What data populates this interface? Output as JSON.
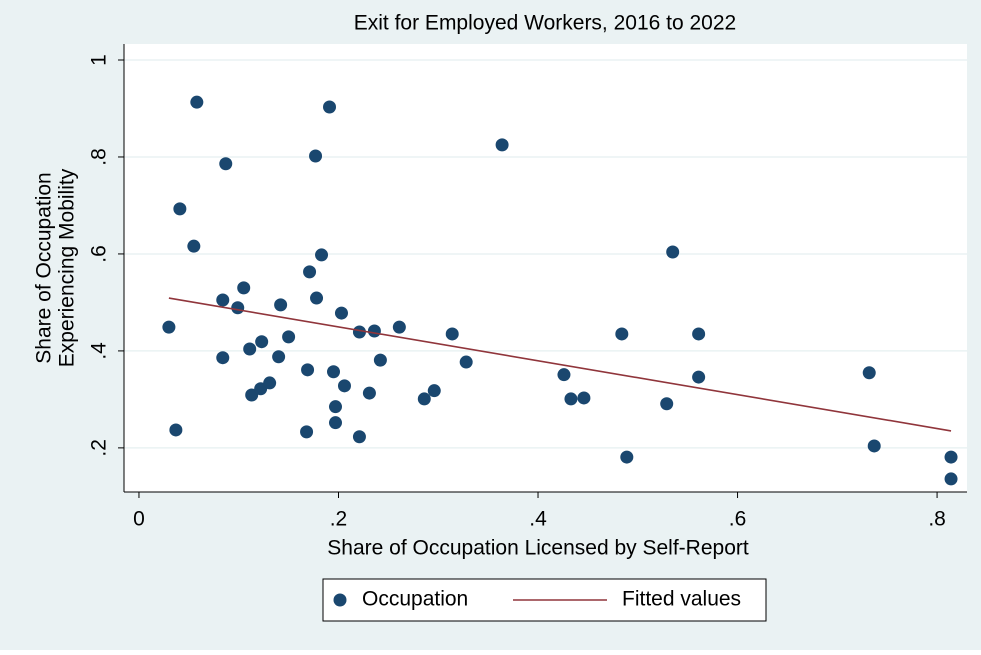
{
  "chart_data": {
    "type": "scatter",
    "title": "Exit for Employed Workers, 2016 to 2022",
    "xlabel": "Share of Occupation Licensed by Self-Report",
    "ylabel": [
      "Share of Occupation",
      "Experiencing Mobility"
    ],
    "xlim": [
      -0.015,
      0.83
    ],
    "ylim": [
      0.109,
      1.033
    ],
    "xticks": [
      0,
      {
        "value": 0.2,
        "label": ".2"
      },
      {
        "value": 0.4,
        "label": ".4"
      },
      {
        "value": 0.6,
        "label": ".6"
      },
      {
        "value": 0.8,
        "label": ".8"
      }
    ],
    "yticks": [
      {
        "value": 0.2,
        "label": ".2"
      },
      {
        "value": 0.4,
        "label": ".4"
      },
      {
        "value": 0.6,
        "label": ".6"
      },
      {
        "value": 0.8,
        "label": ".8"
      },
      1
    ],
    "grid": true,
    "legend": "bottom",
    "series": [
      {
        "name": "Occupation",
        "type": "scatter",
        "color": "#1a476f",
        "x": [
          0.03,
          0.037,
          0.041,
          0.055,
          0.058,
          0.084,
          0.084,
          0.087,
          0.099,
          0.105,
          0.111,
          0.113,
          0.122,
          0.123,
          0.131,
          0.14,
          0.142,
          0.15,
          0.168,
          0.169,
          0.171,
          0.177,
          0.178,
          0.183,
          0.191,
          0.195,
          0.197,
          0.197,
          0.203,
          0.206,
          0.221,
          0.221,
          0.231,
          0.236,
          0.242,
          0.261,
          0.286,
          0.296,
          0.314,
          0.328,
          0.364,
          0.426,
          0.433,
          0.446,
          0.484,
          0.489,
          0.529,
          0.535,
          0.561,
          0.561,
          0.732,
          0.737,
          0.814,
          0.814
        ],
        "values": [
          0.449,
          0.237,
          0.693,
          0.616,
          0.913,
          0.505,
          0.386,
          0.786,
          0.489,
          0.53,
          0.404,
          0.309,
          0.322,
          0.419,
          0.334,
          0.388,
          0.495,
          0.429,
          0.233,
          0.361,
          0.563,
          0.802,
          0.509,
          0.598,
          0.903,
          0.357,
          0.252,
          0.285,
          0.478,
          0.328,
          0.223,
          0.439,
          0.313,
          0.441,
          0.381,
          0.449,
          0.301,
          0.318,
          0.435,
          0.377,
          0.825,
          0.351,
          0.301,
          0.303,
          0.435,
          0.181,
          0.291,
          0.604,
          0.435,
          0.346,
          0.355,
          0.204,
          0.181,
          0.136
        ]
      },
      {
        "name": "Fitted values",
        "type": "line",
        "color": "#90353b",
        "x": [
          0.03,
          0.814
        ],
        "values": [
          0.509,
          0.235
        ]
      }
    ]
  }
}
